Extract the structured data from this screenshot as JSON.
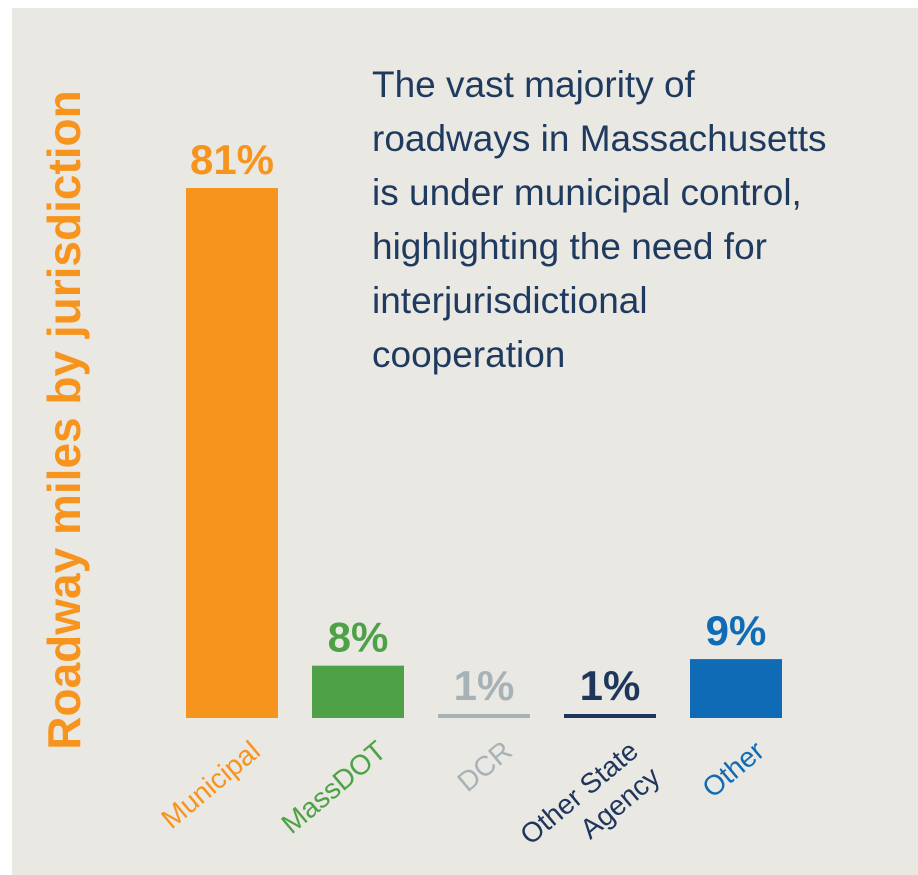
{
  "chart_data": {
    "type": "bar",
    "ylabel": "Roadway miles by jurisdiction",
    "categories": [
      {
        "lines": [
          "Municipal"
        ]
      },
      {
        "lines": [
          "MassDOT"
        ]
      },
      {
        "lines": [
          "DCR"
        ]
      },
      {
        "lines": [
          "Other State",
          "Agency"
        ]
      },
      {
        "lines": [
          "Other"
        ]
      }
    ],
    "values": [
      81,
      8,
      1,
      1,
      9
    ],
    "data_labels": [
      "81%",
      "8%",
      "1%",
      "1%",
      "9%"
    ],
    "colors": [
      "#f7941d",
      "#4ea146",
      "#a7b2b7",
      "#1e365c",
      "#0f6bb5"
    ],
    "ylabel_color": "#f7941d",
    "background": "#eae8e3",
    "ylim": [
      0,
      81
    ],
    "annotation": {
      "lines": [
        "The vast majority of",
        "roadways in Massachusetts",
        "is under municipal control,",
        "highlighting the need for",
        "interjurisdictional",
        "cooperation"
      ]
    }
  }
}
